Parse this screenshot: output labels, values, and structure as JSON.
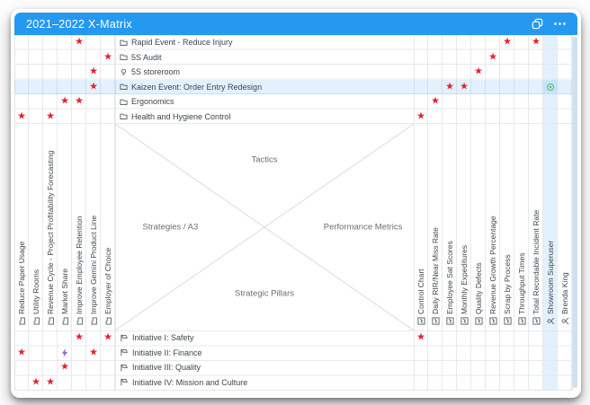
{
  "window": {
    "title": "2021–2022 X-Matrix",
    "header_icons": [
      "copy-icon",
      "more-options-icon"
    ]
  },
  "colors": {
    "header_blue": "#2598f0",
    "star_red": "#e81e2c",
    "bolt_purple": "#9266cc",
    "ring_green": "#59b85f",
    "highlight_blue": "rgba(33,150,243,0.13)",
    "scrollbar_blue": "#cde1f2",
    "gridline": "#e6e9ec"
  },
  "matrix": {
    "quadrant_labels": {
      "top": "Tactics",
      "left": "Strategies / A3",
      "right": "Performance Metrics",
      "bottom": "Strategic Pillars"
    },
    "tactics": [
      {
        "label": "Rapid Event - Reduce Injury",
        "icon": "folder-icon"
      },
      {
        "label": "5S Audit",
        "icon": "folder-icon"
      },
      {
        "label": "5S storeroom",
        "icon": "lightbulb-icon"
      },
      {
        "label": "Kaizen Event: Order Entry Redesign",
        "icon": "folder-icon",
        "highlighted": true
      },
      {
        "label": "Ergonomics",
        "icon": "folder-icon"
      },
      {
        "label": "Health and Hygiene Control",
        "icon": "folder-icon"
      }
    ],
    "strategies": [
      {
        "label": "Reduce Paper Usage",
        "icon": "folder-icon"
      },
      {
        "label": "Utility Rooms",
        "icon": "folder-icon"
      },
      {
        "label": "Revenue Cycle - Project Profitability Forecasting",
        "icon": "folder-icon"
      },
      {
        "label": "Market Share",
        "icon": "folder-icon"
      },
      {
        "label": "Improve Employee Retention",
        "icon": "folder-icon"
      },
      {
        "label": "Improve Gemini Product Line",
        "icon": "folder-icon"
      },
      {
        "label": "Employer of Choice",
        "icon": "folder-icon"
      }
    ],
    "metrics": [
      {
        "label": "Control Chart",
        "icon": "chart-icon"
      },
      {
        "label": "Daily RIR/Near Miss Rate",
        "icon": "chart-icon"
      },
      {
        "label": "Employee Sat Scores",
        "icon": "chart-icon"
      },
      {
        "label": "Monthly Expeditures",
        "icon": "chart-icon"
      },
      {
        "label": "Quality Defects",
        "icon": "chart-icon"
      },
      {
        "label": "Revenue Growth Percentage",
        "icon": "chart-icon"
      },
      {
        "label": "Scrap by Process",
        "icon": "chart-icon"
      },
      {
        "label": "Throughput Times",
        "icon": "chart-icon"
      },
      {
        "label": "Total Recordable Incident Rate",
        "icon": "chart-icon"
      },
      {
        "label": "Showroom Superuser",
        "icon": "person-icon",
        "highlighted": true
      },
      {
        "label": "Brenda King",
        "icon": "person-icon"
      }
    ],
    "pillars": [
      {
        "label": "Initiative I: Safety",
        "icon": "flag-icon"
      },
      {
        "label": "Initiative II: Finance",
        "icon": "flag-icon"
      },
      {
        "label": "Initiative III: Quality",
        "icon": "flag-icon"
      },
      {
        "label": "Initiative IV: Mission and Culture",
        "icon": "flag-icon"
      }
    ],
    "marks": {
      "top_left": [
        {
          "row": 1,
          "col": 5,
          "type": "star"
        },
        {
          "row": 2,
          "col": 7,
          "type": "star"
        },
        {
          "row": 3,
          "col": 6,
          "type": "star"
        },
        {
          "row": 4,
          "col": 6,
          "type": "star"
        },
        {
          "row": 5,
          "col": 4,
          "type": "star"
        },
        {
          "row": 5,
          "col": 5,
          "type": "star"
        },
        {
          "row": 6,
          "col": 1,
          "type": "star"
        },
        {
          "row": 6,
          "col": 3,
          "type": "star"
        }
      ],
      "top_right": [
        {
          "row": 1,
          "col": 7,
          "type": "star"
        },
        {
          "row": 1,
          "col": 9,
          "type": "star"
        },
        {
          "row": 2,
          "col": 6,
          "type": "star"
        },
        {
          "row": 3,
          "col": 5,
          "type": "star"
        },
        {
          "row": 4,
          "col": 3,
          "type": "star"
        },
        {
          "row": 4,
          "col": 4,
          "type": "star"
        },
        {
          "row": 4,
          "col": 10,
          "type": "ring"
        },
        {
          "row": 5,
          "col": 2,
          "type": "star"
        },
        {
          "row": 6,
          "col": 1,
          "type": "star"
        }
      ],
      "bottom_left": [
        {
          "row": 1,
          "col": 5,
          "type": "star"
        },
        {
          "row": 1,
          "col": 7,
          "type": "star"
        },
        {
          "row": 2,
          "col": 1,
          "type": "star"
        },
        {
          "row": 2,
          "col": 4,
          "type": "bolt"
        },
        {
          "row": 2,
          "col": 6,
          "type": "star"
        },
        {
          "row": 3,
          "col": 4,
          "type": "star"
        },
        {
          "row": 4,
          "col": 2,
          "type": "star"
        },
        {
          "row": 4,
          "col": 3,
          "type": "star"
        }
      ],
      "bottom_right": [
        {
          "row": 1,
          "col": 1,
          "type": "star"
        }
      ]
    }
  }
}
